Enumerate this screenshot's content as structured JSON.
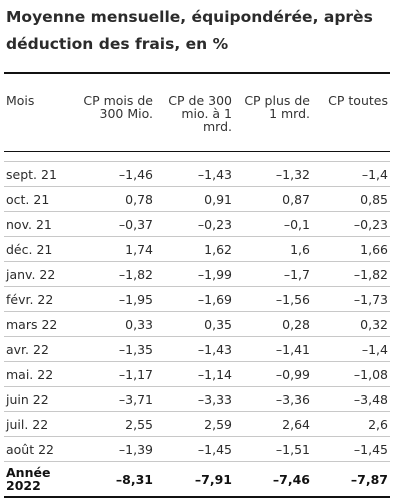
{
  "title": "Moyenne mensuelle, équipondérée, après déduction des frais, en %",
  "table": {
    "headers": [
      "Mois",
      "CP mois de 300 Mio.",
      "CP de 300 mio. à 1 mrd.",
      "CP plus de 1 mrd.",
      "CP toutes"
    ],
    "rows": [
      {
        "month": "sept. 21",
        "values": [
          "–1,46",
          "–1,43",
          "–1,32",
          "–1,4"
        ]
      },
      {
        "month": "oct. 21",
        "values": [
          "0,78",
          "0,91",
          "0,87",
          "0,85"
        ]
      },
      {
        "month": "nov. 21",
        "values": [
          "–0,37",
          "–0,23",
          "–0,1",
          "–0,23"
        ]
      },
      {
        "month": "déc. 21",
        "values": [
          "1,74",
          "1,62",
          "1,6",
          "1,66"
        ]
      },
      {
        "month": "janv. 22",
        "values": [
          "–1,82",
          "–1,99",
          "–1,7",
          "–1,82"
        ]
      },
      {
        "month": "févr. 22",
        "values": [
          "–1,95",
          "–1,69",
          "–1,56",
          "–1,73"
        ]
      },
      {
        "month": "mars 22",
        "values": [
          "0,33",
          "0,35",
          "0,28",
          "0,32"
        ]
      },
      {
        "month": "avr. 22",
        "values": [
          "–1,35",
          "–1,43",
          "–1,41",
          "–1,4"
        ]
      },
      {
        "month": "mai. 22",
        "values": [
          "–1,17",
          "–1,14",
          "–0,99",
          "–1,08"
        ]
      },
      {
        "month": "juin 22",
        "values": [
          "–3,71",
          "–3,33",
          "–3,36",
          "–3,48"
        ]
      },
      {
        "month": "juil. 22",
        "values": [
          "2,55",
          "2,59",
          "2,64",
          "2,6"
        ]
      },
      {
        "month": "août 22",
        "values": [
          "–1,39",
          "–1,45",
          "–1,51",
          "–1,45"
        ]
      }
    ],
    "total": {
      "month": "Année\n2022",
      "values": [
        "–8,31",
        "–7,91",
        "–7,46",
        "–7,87"
      ]
    }
  }
}
